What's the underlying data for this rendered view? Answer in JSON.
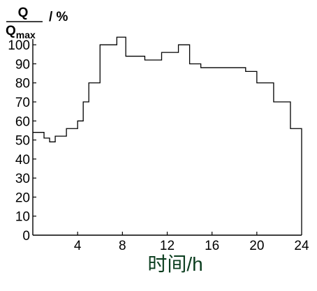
{
  "chart_data": {
    "type": "line",
    "step": true,
    "title": "",
    "ylabel": {
      "numerator": "Q",
      "denominator_base": "Q",
      "denominator_sub": "max",
      "unit": "/ %"
    },
    "xlabel": "时间/h",
    "xlim": [
      0,
      24
    ],
    "ylim": [
      0,
      103
    ],
    "xticks": [
      4,
      8,
      12,
      16,
      20,
      24
    ],
    "yticks": [
      0,
      10,
      20,
      30,
      40,
      50,
      60,
      70,
      80,
      90,
      100
    ],
    "grid": false,
    "legend": "none",
    "line_color": "#000000",
    "text_color": "#000000",
    "xlabel_color": "#0a3d1e",
    "series": [
      {
        "x": [
          0,
          1,
          1.5,
          2,
          3,
          4,
          4.5,
          5,
          6,
          7.5,
          8.3,
          10,
          11.5,
          13,
          14,
          15,
          16,
          19,
          20,
          21.5,
          23,
          24
        ],
        "y": [
          54,
          51,
          49,
          52,
          56,
          60,
          70,
          80,
          100,
          104,
          94,
          92,
          96,
          100,
          90,
          88,
          88,
          86,
          80,
          70,
          56,
          56
        ]
      }
    ]
  }
}
